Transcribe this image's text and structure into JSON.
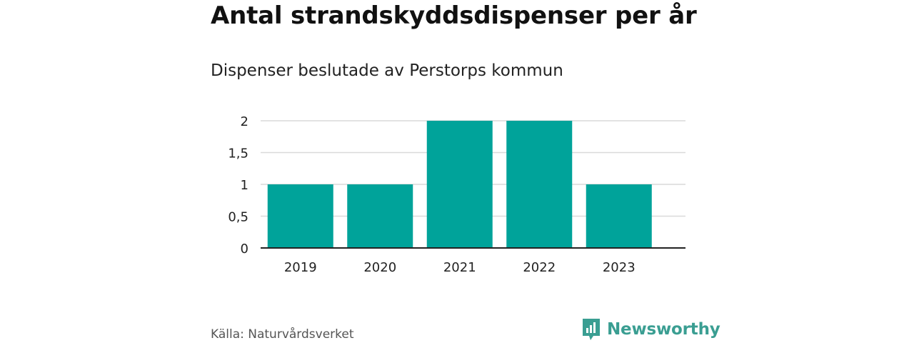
{
  "header": {
    "title": "Antal strandskyddsdispenser per år",
    "subtitle": "Dispenser beslutade av Perstorps kommun"
  },
  "footer": {
    "source": "Källa: Naturvårdsverket",
    "brand": "Newsworthy",
    "brand_icon": "newsworthy-logo-icon",
    "brand_color": "#3a9e92"
  },
  "colors": {
    "bar": "#00a39a",
    "grid": "#d9d9d9",
    "axis": "#222222",
    "tick_text": "#222222"
  },
  "chart_data": {
    "type": "bar",
    "title": "Antal strandskyddsdispenser per år",
    "subtitle": "Dispenser beslutade av Perstorps kommun",
    "categories": [
      "2019",
      "2020",
      "2021",
      "2022",
      "2023"
    ],
    "values": [
      1,
      1,
      2,
      2,
      1
    ],
    "xlabel": "",
    "ylabel": "",
    "ylim": [
      0,
      2
    ],
    "yticks": [
      0,
      0.5,
      1,
      1.5,
      2
    ],
    "ytick_labels": [
      "0",
      "0,5",
      "1",
      "1,5",
      "2"
    ],
    "grid": true,
    "legend": "none"
  }
}
